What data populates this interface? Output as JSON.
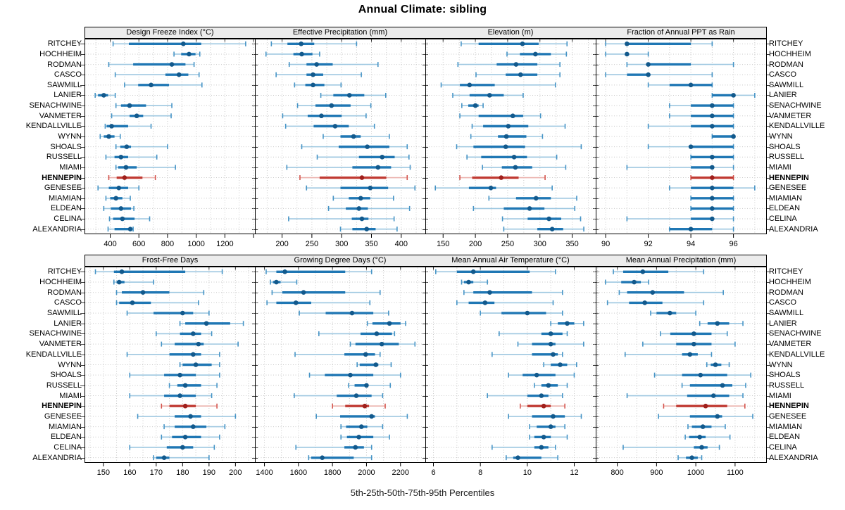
{
  "title": "Annual Climate: sibling",
  "caption": "5th-25th-50th-75th-95th Percentiles",
  "highlight_station": "HENNEPIN",
  "percentile_levels": [
    5,
    25,
    50,
    75,
    95
  ],
  "stations": [
    "RITCHEY",
    "HOCHHEIM",
    "RODMAN",
    "CASCO",
    "SAWMILL",
    "LANIER",
    "SENACHWINE",
    "VANMETER",
    "KENDALLVILLE",
    "WYNN",
    "SHOALS",
    "RUSSELL",
    "MIAMI",
    "HENNEPIN",
    "GENESEE",
    "MIAMIAN",
    "ELDEAN",
    "CELINA",
    "ALEXANDRIA"
  ],
  "colors": {
    "blue_thin": "#9dc7e0",
    "blue_cap": "#4694c6",
    "blue_thick": "#1f77b4",
    "blue_dot": "#12598c",
    "red_thin": "#eab0ab",
    "red_cap": "#d4554e",
    "red_thick": "#c03a32",
    "red_dot": "#9f1f1b",
    "grid": "#c9c9c9",
    "tick": "#000000",
    "top_tick": "#333333",
    "row_stub": "#3a3a3a",
    "panel_header_bg": "#ececec",
    "border": "#000000"
  },
  "chart_data": [
    {
      "type": "dot-whisker",
      "title": "Design Freeze Index (°C)",
      "band": 0,
      "col": 0,
      "xlim": [
        223,
        1412
      ],
      "grid_step": 100,
      "tick_values": [
        400,
        600,
        800,
        1000,
        1200,
        1400
      ],
      "tick_labels": [
        "400",
        "600",
        "800",
        "1000",
        "1200",
        ""
      ],
      "values": [
        [
          420,
          530,
          910,
          1035,
          1345
        ],
        [
          845,
          895,
          950,
          995,
          1025
        ],
        [
          390,
          560,
          830,
          925,
          985
        ],
        [
          435,
          785,
          880,
          945,
          1020
        ],
        [
          500,
          595,
          685,
          810,
          1040
        ],
        [
          295,
          315,
          355,
          385,
          435
        ],
        [
          440,
          475,
          535,
          650,
          830
        ],
        [
          410,
          535,
          585,
          630,
          825
        ],
        [
          365,
          375,
          410,
          525,
          685
        ],
        [
          330,
          355,
          390,
          430,
          470
        ],
        [
          440,
          470,
          515,
          545,
          800
        ],
        [
          370,
          430,
          475,
          525,
          725
        ],
        [
          440,
          455,
          510,
          585,
          855
        ],
        [
          390,
          445,
          500,
          625,
          715
        ],
        [
          315,
          390,
          460,
          525,
          600
        ],
        [
          370,
          400,
          440,
          485,
          540
        ],
        [
          355,
          405,
          475,
          545,
          565
        ],
        [
          395,
          420,
          485,
          570,
          675
        ],
        [
          385,
          430,
          540,
          555,
          560
        ]
      ]
    },
    {
      "type": "dot-whisker",
      "title": "Effective Precipitation (mm)",
      "band": 0,
      "col": 1,
      "xlim": [
        155,
        441
      ],
      "grid_step": 25,
      "tick_values": [
        200,
        250,
        300,
        350,
        400
      ],
      "tick_labels": [
        "200",
        "250",
        "300",
        "350",
        "400"
      ],
      "values": [
        [
          182,
          209,
          232,
          254,
          325
        ],
        [
          173,
          219,
          233,
          251,
          263
        ],
        [
          212,
          241,
          258,
          285,
          361
        ],
        [
          190,
          241,
          252,
          269,
          333
        ],
        [
          221,
          239,
          252,
          271,
          299
        ],
        [
          265,
          286,
          313,
          338,
          374
        ],
        [
          226,
          256,
          283,
          315,
          349
        ],
        [
          201,
          243,
          266,
          300,
          341
        ],
        [
          206,
          253,
          289,
          312,
          355
        ],
        [
          269,
          298,
          320,
          332,
          380
        ],
        [
          233,
          295,
          343,
          380,
          410
        ],
        [
          259,
          329,
          368,
          389,
          413
        ],
        [
          208,
          318,
          361,
          383,
          415
        ],
        [
          230,
          263,
          334,
          375,
          410
        ],
        [
          241,
          298,
          348,
          378,
          423
        ],
        [
          286,
          312,
          332,
          348,
          387
        ],
        [
          278,
          307,
          329,
          344,
          414
        ],
        [
          211,
          317,
          334,
          345,
          388
        ],
        [
          298,
          318,
          342,
          357,
          393
        ]
      ]
    },
    {
      "type": "dot-whisker",
      "title": "Elevation (m)",
      "band": 0,
      "col": 2,
      "xlim": [
        123,
        387
      ],
      "grid_step": 25,
      "tick_values": [
        150,
        200,
        250,
        300,
        350
      ],
      "tick_labels": [
        "150",
        "200",
        "250",
        "300",
        "350"
      ],
      "values": [
        [
          178,
          205,
          273,
          298,
          342
        ],
        [
          249,
          269,
          293,
          317,
          341
        ],
        [
          173,
          233,
          263,
          296,
          331
        ],
        [
          201,
          247,
          270,
          296,
          331
        ],
        [
          147,
          176,
          191,
          230,
          324
        ],
        [
          165,
          191,
          222,
          244,
          274
        ],
        [
          179,
          189,
          200,
          205,
          212
        ],
        [
          176,
          205,
          258,
          274,
          301
        ],
        [
          195,
          212,
          251,
          282,
          339
        ],
        [
          193,
          235,
          248,
          279,
          304
        ],
        [
          171,
          197,
          247,
          277,
          364
        ],
        [
          187,
          209,
          260,
          280,
          326
        ],
        [
          211,
          241,
          262,
          288,
          340
        ],
        [
          176,
          195,
          240,
          267,
          308
        ],
        [
          138,
          190,
          224,
          232,
          319
        ],
        [
          221,
          263,
          294,
          317,
          357
        ],
        [
          197,
          244,
          284,
          307,
          354
        ],
        [
          242,
          281,
          314,
          333,
          363
        ],
        [
          244,
          296,
          319,
          336,
          368
        ]
      ]
    },
    {
      "type": "dot-whisker",
      "title": "Fraction of Annual PPT as Rain",
      "band": 0,
      "col": 3,
      "xlim": [
        89.55,
        97.55
      ],
      "grid_step": 1,
      "tick_values": [
        90,
        92,
        94,
        96
      ],
      "tick_labels": [
        "90",
        "92",
        "94",
        "96"
      ],
      "values": [
        [
          90,
          91,
          91,
          94,
          95
        ],
        [
          90,
          91,
          91,
          91,
          92
        ],
        [
          91,
          92,
          92,
          94,
          96
        ],
        [
          90,
          91,
          92,
          92,
          95
        ],
        [
          92,
          93,
          94,
          95,
          95
        ],
        [
          95,
          95,
          96,
          96,
          97
        ],
        [
          93,
          94,
          95,
          96,
          96
        ],
        [
          93,
          94,
          95,
          96,
          96
        ],
        [
          92,
          94,
          95,
          96,
          96
        ],
        [
          95,
          95,
          96,
          96,
          96
        ],
        [
          92,
          94,
          94,
          96,
          96
        ],
        [
          94,
          94,
          95,
          96,
          96
        ],
        [
          91,
          94,
          95,
          95,
          96
        ],
        [
          94,
          94,
          95,
          96,
          96
        ],
        [
          93,
          94,
          95,
          96,
          97
        ],
        [
          94,
          94,
          95,
          96,
          96
        ],
        [
          94,
          94,
          95,
          96,
          96
        ],
        [
          91,
          94,
          95,
          95,
          96
        ],
        [
          93,
          93,
          94,
          95,
          96
        ]
      ]
    },
    {
      "type": "dot-whisker",
      "title": "Frost-Free Days",
      "band": 1,
      "col": 0,
      "xlim": [
        143,
        207.5
      ],
      "grid_step": 5,
      "tick_values": [
        150,
        160,
        170,
        180,
        190,
        200
      ],
      "tick_labels": [
        "150",
        "160",
        "170",
        "180",
        "190",
        "200"
      ],
      "values": [
        [
          147,
          154,
          157,
          181,
          195
        ],
        [
          154,
          155,
          156,
          158,
          169
        ],
        [
          155,
          157,
          165,
          175,
          188
        ],
        [
          155,
          156,
          161,
          168,
          186
        ],
        [
          159,
          169,
          180,
          184,
          190
        ],
        [
          179,
          181,
          189,
          198,
          203
        ],
        [
          170,
          179,
          184,
          187,
          191
        ],
        [
          172,
          177,
          186,
          188,
          201
        ],
        [
          159,
          175,
          184,
          187,
          194
        ],
        [
          179,
          180,
          185,
          191,
          194
        ],
        [
          160,
          173,
          179,
          185,
          194
        ],
        [
          175,
          178,
          181,
          187,
          193
        ],
        [
          160,
          173,
          179,
          185,
          191
        ],
        [
          172,
          175,
          181,
          185,
          193
        ],
        [
          163,
          177,
          183,
          187,
          200
        ],
        [
          173,
          177,
          184,
          189,
          196
        ],
        [
          172,
          176,
          181,
          187,
          194
        ],
        [
          160,
          174,
          180,
          184,
          192
        ],
        [
          169,
          170,
          173,
          175,
          190
        ]
      ]
    },
    {
      "type": "dot-whisker",
      "title": "Growing Degree Days (°C)",
      "band": 1,
      "col": 1,
      "xlim": [
        1346,
        2348
      ],
      "grid_step": 100,
      "tick_values": [
        1400,
        1600,
        1800,
        2000,
        2200
      ],
      "tick_labels": [
        "1400",
        "1600",
        "1800",
        "2000",
        "2200"
      ],
      "values": [
        [
          1410,
          1470,
          1520,
          1875,
          2030
        ],
        [
          1435,
          1450,
          1470,
          1495,
          1590
        ],
        [
          1445,
          1505,
          1630,
          1875,
          2080
        ],
        [
          1415,
          1470,
          1585,
          1675,
          2020
        ],
        [
          1605,
          1760,
          1915,
          2040,
          2130
        ],
        [
          2005,
          2035,
          2135,
          2200,
          2230
        ],
        [
          1720,
          1965,
          2060,
          2150,
          2165
        ],
        [
          1905,
          1935,
          2090,
          2190,
          2285
        ],
        [
          1580,
          1870,
          1995,
          2050,
          2080
        ],
        [
          1945,
          1960,
          2055,
          2070,
          2145
        ],
        [
          1665,
          1755,
          1905,
          2040,
          2200
        ],
        [
          1895,
          1930,
          2000,
          2010,
          2140
        ],
        [
          1575,
          1825,
          1940,
          2030,
          2095
        ],
        [
          1800,
          1875,
          1990,
          2015,
          2110
        ],
        [
          1705,
          1845,
          2030,
          2050,
          2240
        ],
        [
          1850,
          1880,
          1970,
          2005,
          2095
        ],
        [
          1850,
          1885,
          1955,
          2040,
          2135
        ],
        [
          1585,
          1870,
          1935,
          1985,
          2030
        ],
        [
          1660,
          1675,
          1740,
          1925,
          2030
        ]
      ]
    },
    {
      "type": "dot-whisker",
      "title": "Mean Annual Air Temperature (°C)",
      "band": 1,
      "col": 2,
      "xlim": [
        5.67,
        12.93
      ],
      "grid_step": 1,
      "tick_values": [
        6,
        8,
        10,
        12
      ],
      "tick_labels": [
        "6",
        "8",
        "10",
        "12"
      ],
      "values": [
        [
          6.1,
          7.0,
          7.7,
          10.1,
          11.2
        ],
        [
          7.2,
          7.3,
          7.5,
          7.7,
          8.3
        ],
        [
          7.3,
          7.7,
          8.4,
          10.2,
          11.5
        ],
        [
          7.0,
          7.5,
          8.2,
          8.6,
          11.1
        ],
        [
          8.0,
          8.9,
          10.0,
          10.8,
          11.5
        ],
        [
          11.0,
          11.3,
          11.7,
          12.0,
          12.4
        ],
        [
          8.8,
          10.6,
          11.0,
          11.5,
          11.7
        ],
        [
          9.6,
          10.2,
          11.0,
          11.2,
          12.4
        ],
        [
          8.5,
          10.2,
          11.1,
          11.3,
          11.5
        ],
        [
          10.7,
          11.0,
          11.4,
          11.7,
          12.1
        ],
        [
          9.2,
          9.8,
          10.4,
          11.2,
          12.0
        ],
        [
          10.3,
          10.6,
          10.9,
          11.3,
          11.7
        ],
        [
          8.3,
          10.0,
          10.6,
          10.9,
          11.5
        ],
        [
          9.7,
          10.0,
          10.7,
          11.0,
          11.6
        ],
        [
          9.2,
          10.2,
          11.1,
          11.6,
          12.3
        ],
        [
          10.1,
          10.4,
          11.0,
          11.2,
          11.6
        ],
        [
          10.1,
          10.3,
          10.7,
          11.0,
          11.7
        ],
        [
          8.5,
          10.3,
          10.6,
          10.9,
          11.2
        ],
        [
          9.1,
          9.4,
          9.6,
          10.6,
          11.3
        ]
      ]
    },
    {
      "type": "dot-whisker",
      "title": "Mean Annual Precipitation (mm)",
      "band": 1,
      "col": 3,
      "xlim": [
        746,
        1180
      ],
      "grid_step": 50,
      "tick_values": [
        800,
        900,
        1000,
        1100
      ],
      "tick_labels": [
        "800",
        "900",
        "1000",
        "1100"
      ],
      "values": [
        [
          790,
          815,
          865,
          930,
          1020
        ],
        [
          770,
          810,
          843,
          860,
          880
        ],
        [
          805,
          825,
          890,
          970,
          1070
        ],
        [
          775,
          830,
          870,
          915,
          1020
        ],
        [
          885,
          900,
          934,
          950,
          1000
        ],
        [
          1010,
          1030,
          1055,
          1085,
          1120
        ],
        [
          910,
          935,
          995,
          1040,
          1080
        ],
        [
          865,
          950,
          995,
          1040,
          1100
        ],
        [
          820,
          965,
          985,
          1005,
          1040
        ],
        [
          1028,
          1038,
          1050,
          1065,
          1085
        ],
        [
          895,
          965,
          1012,
          1080,
          1140
        ],
        [
          965,
          985,
          1068,
          1093,
          1127
        ],
        [
          825,
          978,
          1045,
          1085,
          1120
        ],
        [
          918,
          950,
          1025,
          1080,
          1125
        ],
        [
          905,
          985,
          1055,
          1067,
          1145
        ],
        [
          980,
          990,
          1018,
          1040,
          1075
        ],
        [
          973,
          983,
          1010,
          1025,
          1087
        ],
        [
          815,
          995,
          1015,
          1030,
          1060
        ],
        [
          955,
          975,
          990,
          1005,
          1015
        ]
      ]
    }
  ]
}
